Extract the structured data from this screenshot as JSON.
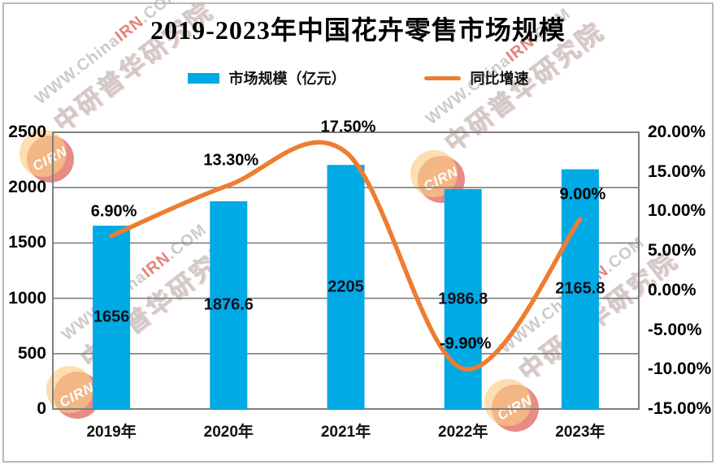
{
  "title": "2019-2023年中国花卉零售市场规模",
  "legend": {
    "bar_label": "市场规模（亿元）",
    "line_label": "同比增速"
  },
  "chart_data": {
    "type": "bar",
    "subtype": "dual-axis bar + smooth line combo",
    "title": "2019-2023年中国花卉零售市场规模",
    "categories": [
      "2019年",
      "2020年",
      "2021年",
      "2022年",
      "2023年"
    ],
    "series": [
      {
        "name": "市场规模（亿元）",
        "type": "bar",
        "axis": "left",
        "values": [
          1656,
          1876.6,
          2205,
          1986.8,
          2165.8
        ],
        "data_labels": [
          "1656",
          "1876.6",
          "2205",
          "1986.8",
          "2165.8"
        ]
      },
      {
        "name": "同比增速",
        "type": "line",
        "axis": "right",
        "values": [
          6.9,
          13.3,
          17.5,
          -9.9,
          9.0
        ],
        "data_labels": [
          "6.90%",
          "13.30%",
          "17.50%",
          "-9.90%",
          "9.00%"
        ]
      }
    ],
    "left_axis": {
      "min": 0,
      "max": 2500,
      "tick_step": 500,
      "tick_labels": [
        "0",
        "500",
        "1000",
        "1500",
        "2000",
        "2500"
      ]
    },
    "right_axis": {
      "min": -15,
      "max": 20,
      "tick_step": 5,
      "tick_labels": [
        "-15.00%",
        "-10.00%",
        "-5.00%",
        "0.00%",
        "5.00%",
        "10.00%",
        "15.00%",
        "20.00%"
      ]
    },
    "grid": true,
    "legend_position": "top"
  },
  "watermark": {
    "badge": "CIRN",
    "url_prefix": "WWW.China",
    "url_highlight": "IRN",
    "url_suffix": ".COM",
    "org": "中研普华研究院"
  },
  "colors": {
    "bar": "#00AAE4",
    "line": "#ED7D31",
    "grid": "#7F7F7F",
    "bar_value_text": "#10101f",
    "watermark_red": "#D8453C",
    "watermark_yellow": "#F6AD3C",
    "watermark_gray": "#C2BEBC"
  }
}
